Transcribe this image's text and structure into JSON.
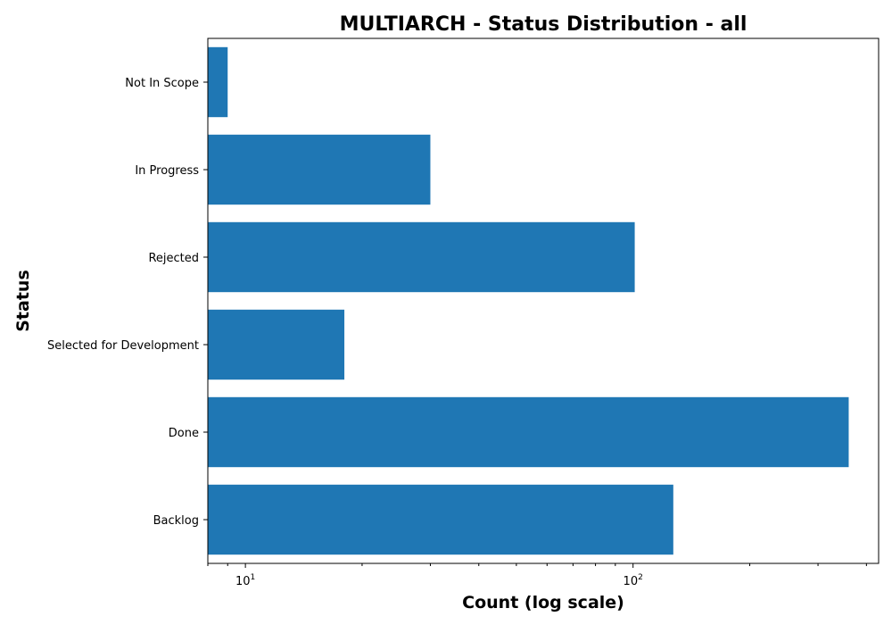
{
  "chart_data": {
    "type": "bar",
    "orientation": "horizontal",
    "title": "MULTIARCH - Status Distribution - all",
    "xlabel": "Count (log scale)",
    "ylabel": "Status",
    "xscale": "log",
    "xlim": [
      8,
      430
    ],
    "categories": [
      "Backlog",
      "Done",
      "Selected for Development",
      "Rejected",
      "In Progress",
      "Not In Scope"
    ],
    "values": [
      127,
      360,
      18,
      101,
      30,
      9
    ],
    "xticks": [
      {
        "value": 10,
        "base": "10",
        "exp": "1"
      },
      {
        "value": 100,
        "base": "10",
        "exp": "2"
      }
    ],
    "bar_color": "#1f77b4",
    "grid": false,
    "legend": "none"
  }
}
